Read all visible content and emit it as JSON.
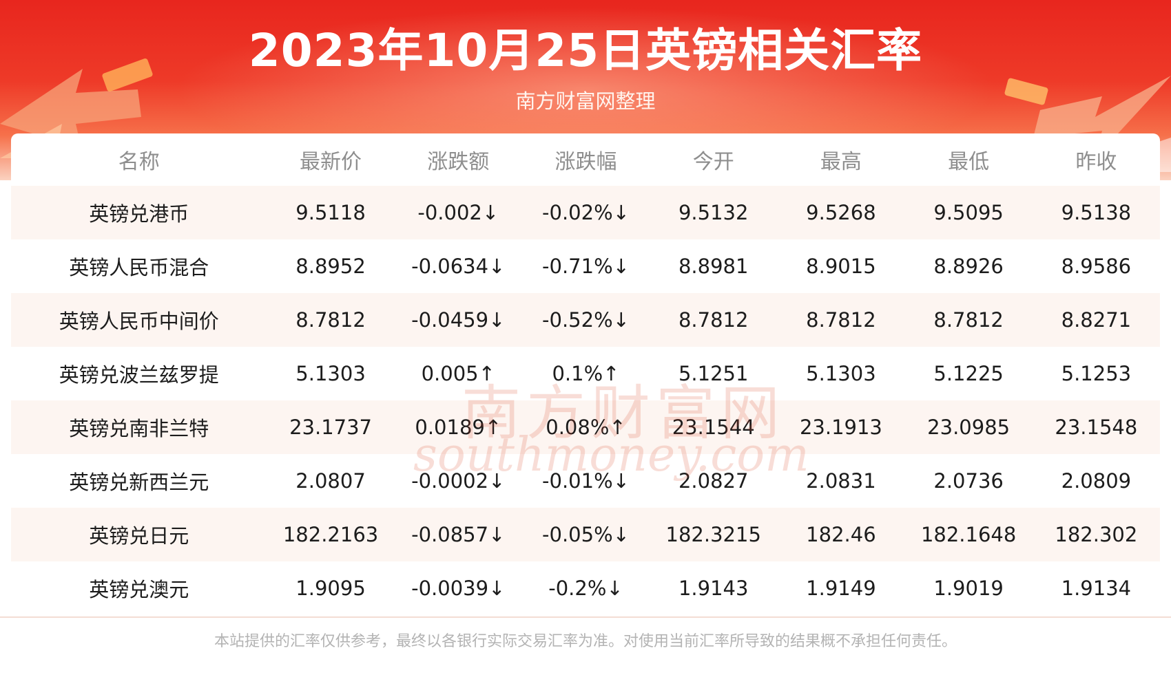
{
  "header": {
    "title": "2023年10月25日英镑相关汇率",
    "subtitle": "南方财富网整理"
  },
  "table": {
    "columns": [
      "名称",
      "最新价",
      "涨跌额",
      "涨跌幅",
      "今开",
      "最高",
      "最低",
      "昨收"
    ],
    "rows": [
      {
        "name": "英镑兑港币",
        "latest": "9.5118",
        "change": "-0.002↓",
        "change_pct": "-0.02%↓",
        "open": "9.5132",
        "high": "9.5268",
        "low": "9.5095",
        "prev_close": "9.5138",
        "trend": "down"
      },
      {
        "name": "英镑人民币混合",
        "latest": "8.8952",
        "change": "-0.0634↓",
        "change_pct": "-0.71%↓",
        "open": "8.8981",
        "high": "8.9015",
        "low": "8.8926",
        "prev_close": "8.9586",
        "trend": "down"
      },
      {
        "name": "英镑人民币中间价",
        "latest": "8.7812",
        "change": "-0.0459↓",
        "change_pct": "-0.52%↓",
        "open": "8.7812",
        "high": "8.7812",
        "low": "8.7812",
        "prev_close": "8.8271",
        "trend": "down"
      },
      {
        "name": "英镑兑波兰兹罗提",
        "latest": "5.1303",
        "change": "0.005↑",
        "change_pct": "0.1%↑",
        "open": "5.1251",
        "high": "5.1303",
        "low": "5.1225",
        "prev_close": "5.1253",
        "trend": "up"
      },
      {
        "name": "英镑兑南非兰特",
        "latest": "23.1737",
        "change": "0.0189↑",
        "change_pct": "0.08%↑",
        "open": "23.1544",
        "high": "23.1913",
        "low": "23.0985",
        "prev_close": "23.1548",
        "trend": "up"
      },
      {
        "name": "英镑兑新西兰元",
        "latest": "2.0807",
        "change": "-0.0002↓",
        "change_pct": "-0.01%↓",
        "open": "2.0827",
        "high": "2.0831",
        "low": "2.0736",
        "prev_close": "2.0809",
        "trend": "down"
      },
      {
        "name": "英镑兑日元",
        "latest": "182.2163",
        "change": "-0.0857↓",
        "change_pct": "-0.05%↓",
        "open": "182.3215",
        "high": "182.46",
        "low": "182.1648",
        "prev_close": "182.302",
        "trend": "down"
      },
      {
        "name": "英镑兑澳元",
        "latest": "1.9095",
        "change": "-0.0039↓",
        "change_pct": "-0.2%↓",
        "open": "1.9143",
        "high": "1.9149",
        "low": "1.9019",
        "prev_close": "1.9134",
        "trend": "down"
      }
    ]
  },
  "watermark": {
    "line1": "南方财富网",
    "line2": "southmoney.com"
  },
  "footer": {
    "disclaimer": "本站提供的汇率仅供参考，最终以各银行实际交易汇率为准。对使用当前汇率所导致的结果概不承担任何责任。"
  },
  "colors": {
    "banner_red": "#e8261e",
    "up_red": "#e6261e",
    "down_green": "#1f9a2e",
    "row_tint": "#fdf5f1"
  }
}
